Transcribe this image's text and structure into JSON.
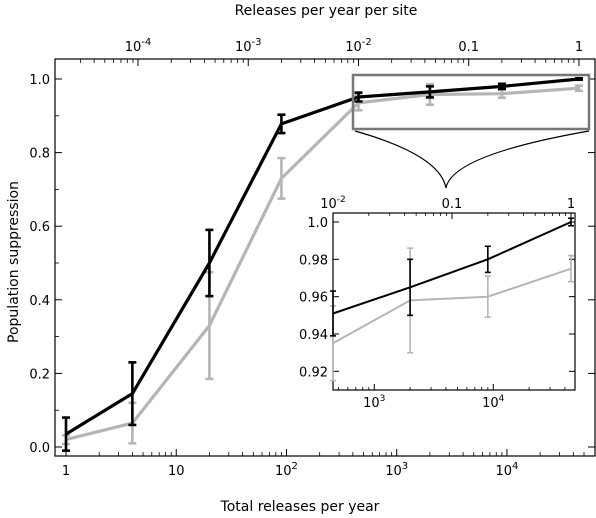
{
  "colors": {
    "dark_series": "#000000",
    "light_series": "#b5b5b5",
    "zoom_box": "#777777"
  },
  "chart_data": [
    {
      "type": "line",
      "xlabel": "Total releases per year",
      "ylabel": "Population suppression",
      "x2label": "Releases per year per site",
      "x_scale": "log",
      "xlim": [
        1,
        50000
      ],
      "ylim": [
        0,
        1.0
      ],
      "x_ticks": [
        {
          "value": 1,
          "base": "1",
          "exp": ""
        },
        {
          "value": 10,
          "base": "10",
          "exp": ""
        },
        {
          "value": 100,
          "base": "10",
          "exp": "2"
        },
        {
          "value": 1000,
          "base": "10",
          "exp": "3"
        },
        {
          "value": 10000,
          "base": "10",
          "exp": "4"
        }
      ],
      "x2_ticks": [
        {
          "value": 0.0001,
          "base": "10",
          "exp": "-4"
        },
        {
          "value": 0.001,
          "base": "10",
          "exp": "-3"
        },
        {
          "value": 0.01,
          "base": "10",
          "exp": "-2"
        },
        {
          "value": 0.1,
          "base": "0.1",
          "exp": ""
        },
        {
          "value": 1,
          "base": "1",
          "exp": ""
        }
      ],
      "y_ticks": [
        "0.0",
        "0.2",
        "0.4",
        "0.6",
        "0.8",
        "1.0"
      ],
      "series": [
        {
          "color": "#000000",
          "x": [
            1,
            4,
            20,
            90,
            450,
            2000,
            9000,
            45000
          ],
          "y": [
            0.035,
            0.145,
            0.5,
            0.878,
            0.951,
            0.965,
            0.98,
            1.0
          ],
          "err": [
            0.045,
            0.085,
            0.09,
            0.025,
            0.012,
            0.015,
            0.007,
            0.002
          ]
        },
        {
          "color": "#b5b5b5",
          "x": [
            1,
            4,
            20,
            90,
            450,
            2000,
            9000,
            45000
          ],
          "y": [
            0.02,
            0.065,
            0.33,
            0.73,
            0.935,
            0.958,
            0.96,
            0.975
          ],
          "err": [
            0.012,
            0.055,
            0.145,
            0.055,
            0.02,
            0.028,
            0.011,
            0.007
          ]
        }
      ]
    },
    {
      "type": "line",
      "role": "inset",
      "x_scale": "log",
      "xlim": [
        450,
        45000
      ],
      "ylim": [
        0.91,
        1.0
      ],
      "x_ticks": [
        {
          "value": 1000,
          "base": "10",
          "exp": "3"
        },
        {
          "value": 10000,
          "base": "10",
          "exp": "4"
        }
      ],
      "x2_ticks": [
        {
          "value": 0.01,
          "base": "10",
          "exp": "-2"
        },
        {
          "value": 0.1,
          "base": "0.1",
          "exp": ""
        },
        {
          "value": 1,
          "base": "1",
          "exp": ""
        }
      ],
      "y_ticks": [
        "0.92",
        "0.94",
        "0.96",
        "0.98",
        "1.0"
      ]
    }
  ]
}
